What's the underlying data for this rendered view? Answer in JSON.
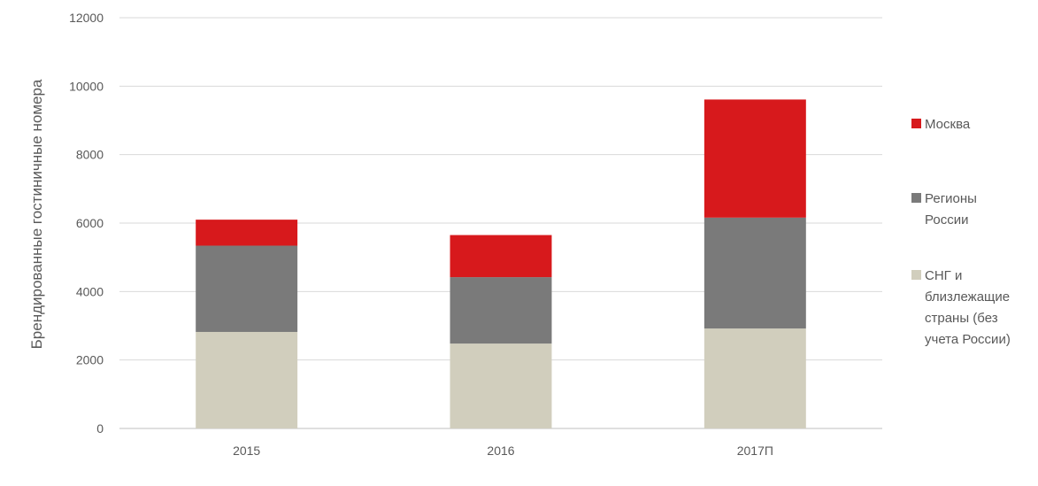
{
  "chart_data": {
    "type": "bar",
    "stacked": true,
    "title": "",
    "xlabel": "",
    "ylabel": "Брендированные гостиничные номера",
    "categories": [
      "2015",
      "2016",
      "2017П"
    ],
    "ylim": [
      0,
      12000
    ],
    "yticks": [
      "0",
      "2000",
      "4000",
      "6000",
      "8000",
      "10000",
      "12000"
    ],
    "grid": true,
    "legend_position": "right",
    "series": [
      {
        "name": "СНГ и близлежащие страны (без учета России)",
        "values": [
          2820,
          2480,
          2920
        ],
        "color": "#d1cebd",
        "legend_lines": [
          "СНГ и",
          "близлежащие",
          "страны (без",
          "учета России)"
        ]
      },
      {
        "name": "Регионы России",
        "values": [
          2520,
          1940,
          3240
        ],
        "color": "#7a7a7a",
        "legend_lines": [
          "Регионы",
          "России"
        ]
      },
      {
        "name": "Москва",
        "values": [
          760,
          1230,
          3450
        ],
        "color": "#d7191c",
        "legend_lines": [
          "Москва"
        ]
      }
    ]
  }
}
